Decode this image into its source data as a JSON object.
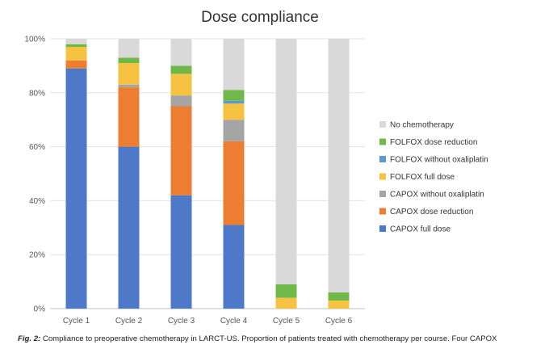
{
  "chart_data": {
    "type": "bar",
    "stacked": true,
    "title": "Dose compliance",
    "xlabel": "",
    "ylabel": "",
    "ylim": [
      0,
      100
    ],
    "y_ticks": [
      "0%",
      "20%",
      "40%",
      "60%",
      "80%",
      "100%"
    ],
    "categories": [
      "Cycle 1",
      "Cycle 2",
      "Cycle 3",
      "Cycle 4",
      "Cycle 5",
      "Cycle 6"
    ],
    "legend_position": "right",
    "series": [
      {
        "name": "CAPOX full dose",
        "color": "#4e79c9",
        "values": [
          89,
          60,
          42,
          31,
          0,
          0
        ]
      },
      {
        "name": "CAPOX dose reduction",
        "color": "#ed7d31",
        "values": [
          3,
          22,
          33,
          31,
          0,
          0
        ]
      },
      {
        "name": "CAPOX without oxaliplatin",
        "color": "#a5a5a5",
        "values": [
          0,
          1,
          4,
          8,
          0,
          0
        ]
      },
      {
        "name": "FOLFOX full dose",
        "color": "#f5c242",
        "values": [
          5,
          8,
          8,
          6,
          4,
          3
        ]
      },
      {
        "name": "FOLFOX without oxaliplatin",
        "color": "#5b9bd5",
        "values": [
          0,
          0,
          0,
          1,
          0,
          0
        ]
      },
      {
        "name": "FOLFOX dose reduction",
        "color": "#70b84a",
        "values": [
          1,
          2,
          3,
          4,
          5,
          3
        ]
      },
      {
        "name": "No chemotherapy",
        "color": "#d9d9d9",
        "values": [
          2,
          7,
          10,
          19,
          91,
          94
        ]
      }
    ]
  },
  "caption": {
    "fig_label": "Fig. 2:",
    "text": " Compliance to preoperative chemotherapy in LARCT-US. Proportion of patients treated with chemotherapy per course. Four CAPOX"
  }
}
